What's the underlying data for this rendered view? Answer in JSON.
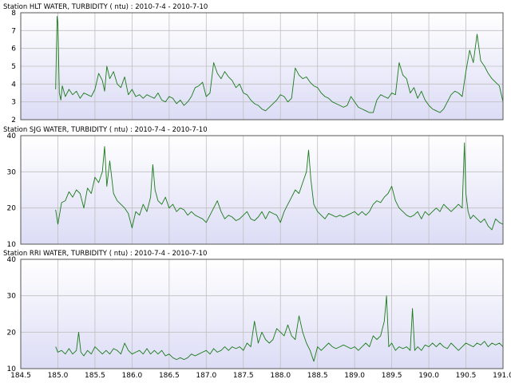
{
  "chart_data": {
    "type": "line",
    "xlim": [
      184.5,
      191.0
    ],
    "xticks": [
      "184.5",
      "185.0",
      "185.5",
      "186.0",
      "186.5",
      "187.0",
      "187.5",
      "188.0",
      "188.5",
      "189.0",
      "189.5",
      "190.0",
      "190.5",
      "191.0"
    ],
    "grid": true,
    "colors": {
      "plot_bg_top": "#ffffff",
      "plot_bg_bottom": "#dcdcf6",
      "grid": "#c0c0c0",
      "line": "#1a7a1a"
    },
    "panels": [
      {
        "title": "Station HLT WATER, TURBIDITY ( ntu) : 2010-7-4 - 2010-7-10",
        "ylim": [
          2,
          8
        ],
        "yticks": [
          "2",
          "3",
          "4",
          "5",
          "6",
          "7",
          "8"
        ],
        "series": [
          {
            "x": [
              184.97,
              184.99,
              185.0,
              185.02,
              185.04,
              185.06,
              185.1,
              185.15,
              185.2,
              185.25,
              185.3,
              185.35,
              185.4,
              185.45,
              185.5,
              185.55,
              185.6,
              185.63,
              185.66,
              185.7,
              185.75,
              185.8,
              185.85,
              185.9,
              185.95,
              186.0,
              186.05,
              186.1,
              186.15,
              186.2,
              186.25,
              186.3,
              186.35,
              186.4,
              186.45,
              186.5,
              186.55,
              186.6,
              186.65,
              186.7,
              186.75,
              186.8,
              186.85,
              186.9,
              186.95,
              187.0,
              187.05,
              187.1,
              187.15,
              187.2,
              187.25,
              187.3,
              187.35,
              187.4,
              187.45,
              187.5,
              187.55,
              187.6,
              187.65,
              187.7,
              187.75,
              187.8,
              187.85,
              187.9,
              187.95,
              188.0,
              188.05,
              188.1,
              188.15,
              188.2,
              188.25,
              188.3,
              188.35,
              188.4,
              188.45,
              188.5,
              188.55,
              188.6,
              188.65,
              188.7,
              188.75,
              188.8,
              188.85,
              188.9,
              188.95,
              189.0,
              189.05,
              189.1,
              189.15,
              189.2,
              189.25,
              189.3,
              189.35,
              189.4,
              189.45,
              189.5,
              189.55,
              189.6,
              189.65,
              189.7,
              189.75,
              189.8,
              189.85,
              189.9,
              189.95,
              190.0,
              190.05,
              190.1,
              190.15,
              190.2,
              190.25,
              190.3,
              190.35,
              190.4,
              190.45,
              190.5,
              190.55,
              190.6,
              190.65,
              190.7,
              190.75,
              190.8,
              190.85,
              190.9,
              190.95
            ],
            "y": [
              3.7,
              7.8,
              7.4,
              3.5,
              3.1,
              3.9,
              3.3,
              3.7,
              3.4,
              3.6,
              3.2,
              3.5,
              3.4,
              3.3,
              3.7,
              4.6,
              4.2,
              3.6,
              5.0,
              4.3,
              4.7,
              4.0,
              3.8,
              4.4,
              3.4,
              3.7,
              3.3,
              3.4,
              3.2,
              3.4,
              3.3,
              3.2,
              3.5,
              3.1,
              3.0,
              3.3,
              3.2,
              2.9,
              3.1,
              2.8,
              3.0,
              3.3,
              3.8,
              3.9,
              4.1,
              3.3,
              3.5,
              5.2,
              4.6,
              4.3,
              4.7,
              4.4,
              4.2,
              3.8,
              4.0,
              3.5,
              3.4,
              3.1,
              2.9,
              2.8,
              2.6,
              2.5,
              2.7,
              2.9,
              3.1,
              3.4,
              3.3,
              3.0,
              3.2,
              4.9,
              4.5,
              4.3,
              4.4,
              4.1,
              3.9,
              3.8,
              3.5,
              3.3,
              3.2,
              3.0,
              2.9,
              2.8,
              2.7,
              2.8,
              3.3,
              3.0,
              2.7,
              2.6,
              2.5,
              2.4,
              2.4,
              3.1,
              3.4,
              3.3,
              3.2,
              3.5,
              3.4,
              5.2,
              4.5,
              4.3,
              3.5,
              3.8,
              3.2,
              3.6,
              3.1,
              2.8,
              2.6,
              2.5,
              2.4,
              2.6,
              3.0,
              3.4,
              3.6,
              3.5,
              3.3,
              4.7,
              5.9,
              5.2,
              6.8,
              5.3,
              5.0,
              4.6,
              4.3,
              4.1,
              3.9
            ],
            "x_tail": [
              191.0
            ],
            "y_tail": [
              3.0
            ]
          }
        ]
      },
      {
        "title": "Station SJG WATER, TURBIDITY ( ntu) : 2010-7-4 - 2010-7-10",
        "ylim": [
          10,
          40
        ],
        "yticks": [
          "10",
          "20",
          "30",
          "40"
        ],
        "series": [
          {
            "x": [
              184.97,
              185.0,
              185.05,
              185.1,
              185.15,
              185.2,
              185.25,
              185.3,
              185.35,
              185.4,
              185.45,
              185.5,
              185.55,
              185.6,
              185.63,
              185.66,
              185.7,
              185.75,
              185.8,
              185.85,
              185.9,
              185.95,
              186.0,
              186.05,
              186.1,
              186.15,
              186.2,
              186.25,
              186.28,
              186.31,
              186.35,
              186.4,
              186.45,
              186.5,
              186.55,
              186.6,
              186.65,
              186.7,
              186.75,
              186.8,
              186.85,
              186.9,
              186.95,
              187.0,
              187.05,
              187.1,
              187.15,
              187.2,
              187.25,
              187.3,
              187.35,
              187.4,
              187.45,
              187.5,
              187.55,
              187.6,
              187.65,
              187.7,
              187.75,
              187.8,
              187.85,
              187.9,
              187.95,
              188.0,
              188.05,
              188.1,
              188.15,
              188.2,
              188.25,
              188.3,
              188.35,
              188.38,
              188.41,
              188.45,
              188.5,
              188.55,
              188.6,
              188.65,
              188.7,
              188.75,
              188.8,
              188.85,
              188.9,
              188.95,
              189.0,
              189.05,
              189.1,
              189.15,
              189.2,
              189.25,
              189.3,
              189.35,
              189.4,
              189.45,
              189.5,
              189.55,
              189.6,
              189.65,
              189.7,
              189.75,
              189.8,
              189.85,
              189.9,
              189.95,
              190.0,
              190.05,
              190.1,
              190.15,
              190.2,
              190.25,
              190.3,
              190.35,
              190.4,
              190.45,
              190.48,
              190.5,
              190.53,
              190.56,
              190.6,
              190.65,
              190.7,
              190.75,
              190.8,
              190.85,
              190.9,
              190.95
            ],
            "y": [
              19.5,
              15.5,
              21.5,
              22.0,
              24.5,
              23.0,
              25.0,
              24.0,
              20.0,
              25.5,
              24.0,
              28.5,
              27.0,
              30.0,
              37.0,
              26.0,
              33.0,
              24.0,
              22.0,
              21.0,
              20.0,
              18.5,
              14.5,
              19.0,
              18.0,
              21.0,
              19.0,
              23.0,
              32.0,
              25.0,
              22.0,
              21.0,
              23.0,
              20.0,
              21.0,
              19.0,
              20.0,
              19.5,
              18.0,
              19.0,
              18.0,
              17.5,
              17.0,
              16.0,
              18.0,
              20.0,
              22.0,
              19.0,
              17.0,
              18.0,
              17.5,
              16.5,
              17.0,
              18.0,
              19.0,
              17.0,
              16.5,
              17.5,
              19.0,
              17.0,
              19.0,
              18.5,
              18.0,
              16.0,
              19.0,
              21.0,
              23.0,
              25.0,
              24.0,
              27.0,
              30.0,
              36.0,
              28.0,
              21.0,
              19.0,
              18.0,
              17.0,
              18.5,
              18.0,
              17.5,
              18.0,
              17.5,
              18.0,
              18.5,
              19.0,
              18.0,
              19.0,
              18.0,
              19.0,
              21.0,
              22.0,
              21.5,
              23.0,
              24.0,
              26.0,
              22.0,
              20.0,
              19.0,
              18.0,
              17.5,
              18.0,
              19.0,
              17.0,
              19.0,
              18.0,
              19.0,
              20.0,
              19.0,
              21.0,
              20.0,
              19.0,
              20.0,
              21.0,
              20.0,
              38.0,
              24.0,
              19.0,
              17.0,
              18.0,
              17.0,
              16.0,
              17.0,
              15.0,
              14.0,
              17.0,
              16.0
            ],
            "x_tail": [
              191.0
            ],
            "y_tail": [
              15.5
            ]
          }
        ]
      },
      {
        "title": "Station RRI WATER, TURBIDITY ( ntu) : 2010-7-4 - 2010-7-10",
        "ylim": [
          10,
          40
        ],
        "yticks": [
          "10",
          "20",
          "30",
          "40"
        ],
        "series": [
          {
            "x": [
              184.97,
              185.0,
              185.05,
              185.1,
              185.15,
              185.2,
              185.25,
              185.28,
              185.31,
              185.35,
              185.4,
              185.45,
              185.5,
              185.55,
              185.6,
              185.65,
              185.7,
              185.75,
              185.8,
              185.85,
              185.9,
              185.95,
              186.0,
              186.05,
              186.1,
              186.15,
              186.2,
              186.25,
              186.3,
              186.35,
              186.4,
              186.45,
              186.5,
              186.55,
              186.6,
              186.65,
              186.7,
              186.75,
              186.8,
              186.85,
              186.9,
              186.95,
              187.0,
              187.05,
              187.1,
              187.15,
              187.2,
              187.25,
              187.3,
              187.35,
              187.4,
              187.45,
              187.5,
              187.55,
              187.6,
              187.65,
              187.7,
              187.75,
              187.8,
              187.85,
              187.9,
              187.95,
              188.0,
              188.05,
              188.1,
              188.15,
              188.2,
              188.25,
              188.3,
              188.35,
              188.4,
              188.45,
              188.5,
              188.55,
              188.6,
              188.65,
              188.7,
              188.75,
              188.8,
              188.85,
              188.9,
              188.95,
              189.0,
              189.05,
              189.1,
              189.15,
              189.2,
              189.25,
              189.3,
              189.35,
              189.4,
              189.43,
              189.46,
              189.5,
              189.55,
              189.6,
              189.65,
              189.7,
              189.75,
              189.78,
              189.81,
              189.85,
              189.9,
              189.95,
              190.0,
              190.05,
              190.1,
              190.15,
              190.2,
              190.25,
              190.3,
              190.35,
              190.4,
              190.45,
              190.5,
              190.55,
              190.6,
              190.65,
              190.7,
              190.75,
              190.8,
              190.85,
              190.9,
              190.95
            ],
            "y": [
              16.0,
              14.5,
              15.0,
              14.0,
              15.5,
              14.0,
              15.0,
              20.0,
              14.5,
              13.5,
              15.0,
              14.0,
              16.0,
              15.0,
              14.0,
              15.0,
              14.0,
              15.5,
              15.0,
              14.0,
              17.0,
              15.0,
              14.0,
              14.5,
              15.0,
              14.0,
              15.5,
              14.0,
              15.0,
              14.0,
              15.0,
              13.5,
              14.0,
              13.0,
              12.5,
              13.0,
              12.5,
              13.0,
              14.0,
              13.5,
              14.0,
              14.5,
              15.0,
              14.0,
              15.5,
              14.5,
              15.0,
              16.0,
              15.0,
              16.0,
              15.5,
              16.0,
              15.0,
              17.0,
              16.0,
              23.0,
              17.0,
              20.0,
              18.0,
              17.0,
              18.0,
              21.0,
              20.0,
              19.0,
              22.0,
              19.0,
              18.0,
              24.5,
              20.0,
              17.0,
              15.0,
              12.0,
              16.0,
              15.0,
              16.0,
              17.0,
              16.0,
              15.5,
              16.0,
              16.5,
              16.0,
              15.5,
              16.0,
              15.0,
              16.0,
              17.0,
              16.0,
              19.0,
              18.0,
              19.0,
              23.0,
              30.0,
              16.0,
              17.0,
              15.0,
              16.0,
              15.5,
              16.0,
              15.0,
              26.5,
              15.0,
              16.0,
              15.0,
              16.5,
              16.0,
              17.0,
              16.0,
              17.0,
              16.0,
              15.5,
              17.0,
              16.0,
              15.0,
              16.0,
              17.0,
              16.5,
              16.0,
              17.0,
              16.5,
              17.5,
              16.0,
              17.0,
              16.5,
              17.0
            ],
            "x_tail": [
              191.0
            ],
            "y_tail": [
              16.0
            ]
          }
        ]
      }
    ]
  }
}
